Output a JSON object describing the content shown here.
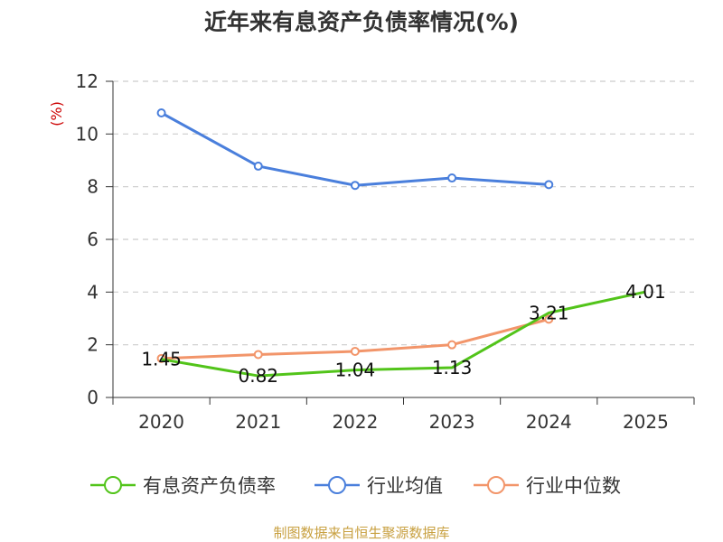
{
  "chart_data": {
    "type": "line",
    "title": "近年来有息资产负债率情况(%)",
    "ylabel": "(%)",
    "ylim": [
      0,
      12
    ],
    "yticks": [
      0,
      2,
      4,
      6,
      8,
      10,
      12
    ],
    "categories": [
      "2020",
      "2021",
      "2022",
      "2023",
      "2024",
      "2025"
    ],
    "grid": true,
    "legend_position": "bottom",
    "series": [
      {
        "name": "有息资产负债率",
        "color": "#52c41a",
        "values": [
          1.45,
          0.82,
          1.04,
          1.13,
          3.21,
          4.01
        ],
        "labels": [
          "1.45",
          "0.82",
          "1.04",
          "1.13",
          "3.21",
          "4.01"
        ]
      },
      {
        "name": "行业均值",
        "color": "#4a7fdc",
        "values": [
          10.8,
          8.78,
          8.05,
          8.33,
          8.08,
          null
        ]
      },
      {
        "name": "行业中位数",
        "color": "#f2956a",
        "values": [
          1.48,
          1.63,
          1.75,
          2.0,
          2.97,
          null
        ]
      }
    ]
  },
  "source": "制图数据来自恒生聚源数据库",
  "colors": {
    "unit_label": "#cc0000",
    "source": "#c8a040",
    "grid": "#cccccc",
    "axis": "#333333"
  }
}
